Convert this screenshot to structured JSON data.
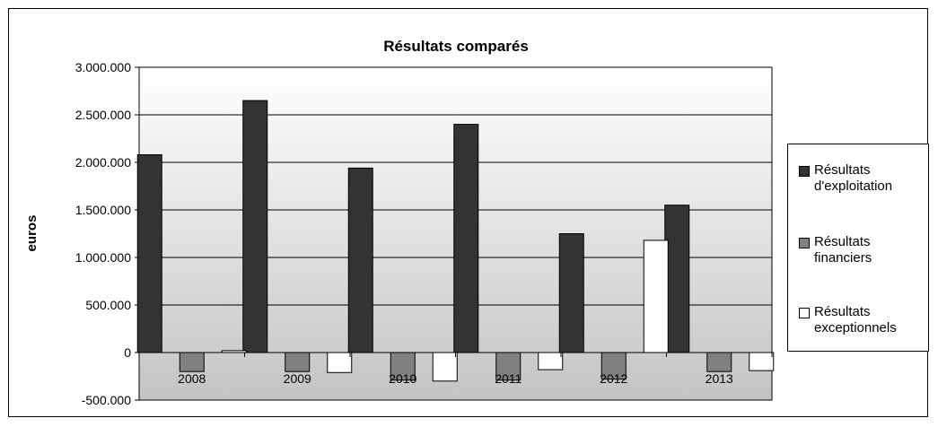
{
  "chart_data": {
    "type": "bar",
    "title": "Résultats comparés",
    "ylabel": "euros",
    "xlabel": "",
    "categories": [
      "2008",
      "2009",
      "2010",
      "2011",
      "2012",
      "2013"
    ],
    "ylim": [
      -500000,
      3000000
    ],
    "yticks": [
      3000000,
      2500000,
      2000000,
      1500000,
      1000000,
      500000,
      0,
      -500000
    ],
    "ytick_labels": [
      "3.000.000",
      "2.500.000",
      "2.000.000",
      "1.500.000",
      "1.000.000",
      "500.000",
      "0",
      "-500.000"
    ],
    "grid": true,
    "legend_position": "right",
    "series": [
      {
        "name": "Résultats d'exploitation",
        "color": "#333333",
        "values": [
          2080000,
          2650000,
          1940000,
          2400000,
          1250000,
          1550000
        ]
      },
      {
        "name": "Résultats financiers",
        "color": "#808080",
        "values": [
          -200000,
          -200000,
          -290000,
          -290000,
          -280000,
          -200000
        ]
      },
      {
        "name": "Résultats exceptionnels",
        "color": "#ffffff",
        "values": [
          20000,
          -210000,
          -300000,
          -180000,
          1180000,
          -190000
        ]
      }
    ]
  }
}
